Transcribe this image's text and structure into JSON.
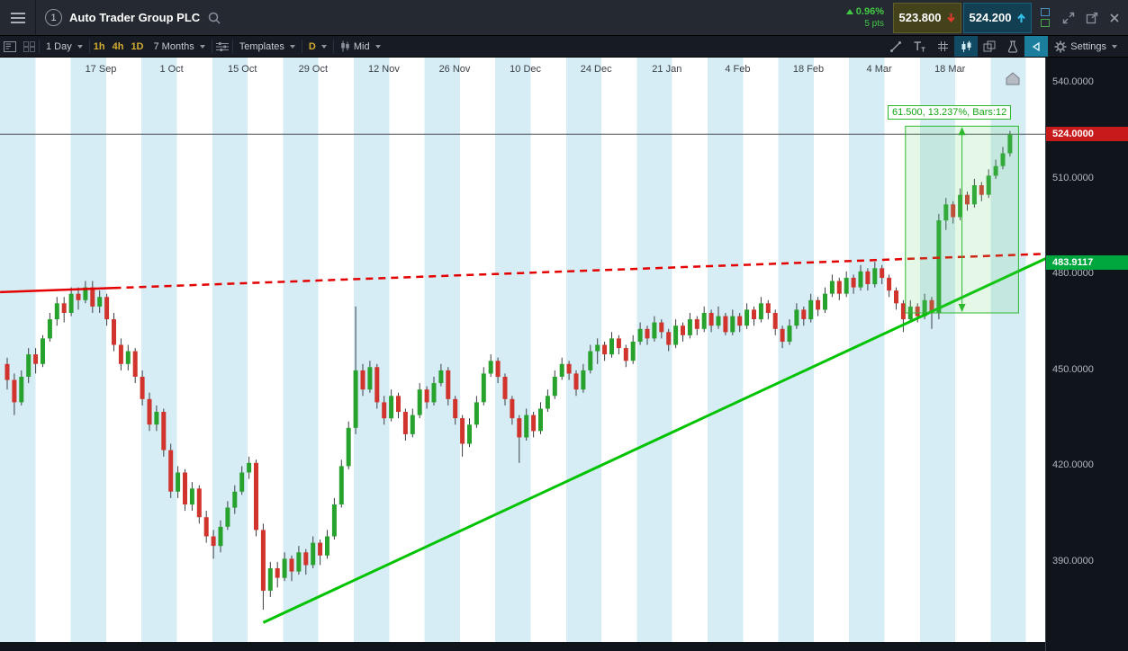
{
  "header": {
    "title": "Auto Trader Group PLC",
    "instrument_badge": "1",
    "change": {
      "pct": "0.96%",
      "pts": "5 pts",
      "direction": "up",
      "color": "#42c944"
    },
    "sell": {
      "label": "523.800"
    },
    "buy": {
      "label": "524.200"
    }
  },
  "toolbar": {
    "interval": "1 Day",
    "fav_periods": [
      "1h",
      "4h",
      "1D"
    ],
    "range": "7 Months",
    "templates_label": "Templates",
    "period_badge": "D",
    "price_type": "Mid",
    "settings_label": "Settings"
  },
  "icons": {
    "menu-icon": "hamburger-bars",
    "search-icon": "magnifier",
    "sell-arrow-icon": "red-down-arrow",
    "buy-arrow-icon": "cyan-up-arrow",
    "linked-windows-icons": "stacked-squares",
    "expand-icon": "diagonal-arrows",
    "popout-icon": "window-with-arrow",
    "close-icon": "x-cross",
    "panel-icon": "box-with-lines",
    "grid-layout-icon": "four-squares",
    "sliders-icon": "equalizer",
    "candle-small-icon": "mini-candles",
    "trendline-tool-icon": "diagonal-line",
    "text-tool-icon": "T",
    "grid-tool-icon": "hash-grid",
    "candlestick-tool-icon": "candles",
    "layers-icon": "stacked-rects",
    "flask-icon": "flask",
    "cursor-tool-icon": "left-triangle",
    "gear-icon": "gear",
    "home-icon": "house"
  },
  "chart_data": {
    "type": "candlestick",
    "title": "Auto Trader Group PLC, 1 Day",
    "x_labels": [
      "17 Sep",
      "1 Oct",
      "15 Oct",
      "29 Oct",
      "12 Nov",
      "26 Nov",
      "10 Dec",
      "24 Dec",
      "21 Jan",
      "4 Feb",
      "18 Feb",
      "4 Mar",
      "18 Mar"
    ],
    "y_axis_labels": [
      "540.0000",
      "510.0000",
      "480.0000",
      "450.0000",
      "420.0000",
      "390.0000"
    ],
    "y_axis_values": [
      540,
      510,
      480,
      450,
      420,
      390
    ],
    "ylim": [
      360,
      548
    ],
    "candles": [
      [
        452,
        454,
        444,
        447
      ],
      [
        447,
        449,
        436,
        440
      ],
      [
        440,
        450,
        439,
        448
      ],
      [
        448,
        457,
        446,
        455
      ],
      [
        455,
        457,
        449,
        452
      ],
      [
        452,
        461,
        451,
        460
      ],
      [
        460,
        468,
        459,
        466
      ],
      [
        466,
        473,
        464,
        471
      ],
      [
        471,
        473,
        465,
        468
      ],
      [
        468,
        476,
        467,
        474
      ],
      [
        474,
        476,
        469,
        472
      ],
      [
        472,
        478,
        471,
        476
      ],
      [
        476,
        478,
        468,
        470
      ],
      [
        470,
        475,
        468,
        473
      ],
      [
        473,
        474,
        464,
        466
      ],
      [
        466,
        468,
        456,
        458
      ],
      [
        458,
        460,
        450,
        452
      ],
      [
        452,
        458,
        450,
        456
      ],
      [
        456,
        457,
        446,
        448
      ],
      [
        448,
        450,
        439,
        441
      ],
      [
        441,
        443,
        431,
        433
      ],
      [
        433,
        439,
        431,
        437
      ],
      [
        437,
        438,
        423,
        425
      ],
      [
        425,
        427,
        410,
        412
      ],
      [
        412,
        420,
        410,
        418
      ],
      [
        418,
        419,
        406,
        408
      ],
      [
        408,
        415,
        406,
        413
      ],
      [
        413,
        414,
        402,
        404
      ],
      [
        404,
        406,
        396,
        398
      ],
      [
        398,
        400,
        391,
        395
      ],
      [
        395,
        403,
        393,
        401
      ],
      [
        401,
        409,
        400,
        407
      ],
      [
        407,
        414,
        405,
        412
      ],
      [
        412,
        420,
        411,
        418
      ],
      [
        418,
        423,
        416,
        421
      ],
      [
        421,
        422,
        398,
        400
      ],
      [
        400,
        402,
        375,
        381
      ],
      [
        381,
        390,
        379,
        388
      ],
      [
        388,
        390,
        382,
        385
      ],
      [
        385,
        393,
        384,
        391
      ],
      [
        391,
        392,
        384,
        387
      ],
      [
        387,
        395,
        386,
        393
      ],
      [
        393,
        394,
        386,
        389
      ],
      [
        389,
        398,
        388,
        396
      ],
      [
        396,
        397,
        389,
        392
      ],
      [
        392,
        400,
        391,
        398
      ],
      [
        398,
        410,
        397,
        408
      ],
      [
        408,
        422,
        407,
        420
      ],
      [
        420,
        434,
        419,
        432
      ],
      [
        432,
        470,
        430,
        450
      ],
      [
        450,
        452,
        442,
        444
      ],
      [
        444,
        453,
        443,
        451
      ],
      [
        451,
        452,
        438,
        440
      ],
      [
        440,
        442,
        433,
        435
      ],
      [
        435,
        444,
        434,
        442
      ],
      [
        442,
        443,
        435,
        437
      ],
      [
        437,
        438,
        428,
        430
      ],
      [
        430,
        438,
        429,
        436
      ],
      [
        436,
        446,
        435,
        444
      ],
      [
        444,
        445,
        438,
        440
      ],
      [
        440,
        448,
        439,
        446
      ],
      [
        446,
        452,
        445,
        450
      ],
      [
        450,
        451,
        439,
        441
      ],
      [
        441,
        442,
        433,
        435
      ],
      [
        435,
        436,
        423,
        427
      ],
      [
        427,
        435,
        426,
        433
      ],
      [
        433,
        442,
        432,
        440
      ],
      [
        440,
        451,
        439,
        449
      ],
      [
        449,
        455,
        448,
        453
      ],
      [
        453,
        454,
        446,
        448
      ],
      [
        448,
        449,
        439,
        441
      ],
      [
        441,
        442,
        433,
        435
      ],
      [
        435,
        436,
        421,
        429
      ],
      [
        429,
        438,
        428,
        436
      ],
      [
        436,
        437,
        429,
        431
      ],
      [
        431,
        440,
        430,
        438
      ],
      [
        438,
        444,
        437,
        442
      ],
      [
        442,
        450,
        441,
        448
      ],
      [
        448,
        454,
        447,
        452
      ],
      [
        452,
        453,
        447,
        449
      ],
      [
        449,
        450,
        442,
        444
      ],
      [
        444,
        452,
        443,
        450
      ],
      [
        450,
        458,
        449,
        456
      ],
      [
        456,
        460,
        452,
        458
      ],
      [
        458,
        459,
        453,
        455
      ],
      [
        455,
        462,
        454,
        460
      ],
      [
        460,
        461,
        455,
        457
      ],
      [
        457,
        458,
        451,
        453
      ],
      [
        453,
        461,
        452,
        459
      ],
      [
        459,
        465,
        458,
        463
      ],
      [
        463,
        464,
        458,
        460
      ],
      [
        460,
        467,
        459,
        465
      ],
      [
        465,
        466,
        460,
        462
      ],
      [
        462,
        463,
        456,
        458
      ],
      [
        458,
        466,
        457,
        464
      ],
      [
        464,
        465,
        459,
        461
      ],
      [
        461,
        468,
        460,
        466
      ],
      [
        466,
        467,
        461,
        463
      ],
      [
        463,
        470,
        462,
        468
      ],
      [
        468,
        469,
        462,
        464
      ],
      [
        464,
        470,
        463,
        467
      ],
      [
        467,
        468,
        461,
        462
      ],
      [
        462,
        469,
        461,
        467
      ],
      [
        467,
        468,
        462,
        464
      ],
      [
        464,
        471,
        463,
        469
      ],
      [
        469,
        470,
        464,
        466
      ],
      [
        466,
        473,
        465,
        471
      ],
      [
        471,
        472,
        466,
        468
      ],
      [
        468,
        469,
        461,
        463
      ],
      [
        463,
        464,
        457,
        459
      ],
      [
        459,
        466,
        458,
        464
      ],
      [
        464,
        471,
        463,
        469
      ],
      [
        469,
        470,
        464,
        466
      ],
      [
        466,
        474,
        465,
        472
      ],
      [
        472,
        473,
        467,
        469
      ],
      [
        469,
        476,
        468,
        474
      ],
      [
        474,
        480,
        473,
        478
      ],
      [
        478,
        479,
        472,
        474
      ],
      [
        474,
        481,
        473,
        479
      ],
      [
        479,
        480,
        474,
        476
      ],
      [
        476,
        483,
        475,
        481
      ],
      [
        481,
        482,
        475,
        477
      ],
      [
        477,
        484,
        476,
        482
      ],
      [
        482,
        483,
        477,
        479
      ],
      [
        479,
        480,
        473,
        475
      ],
      [
        475,
        476,
        469,
        471
      ],
      [
        471,
        472,
        462,
        466
      ],
      [
        466,
        472,
        465,
        470
      ],
      [
        470,
        471,
        465,
        467
      ],
      [
        467,
        474,
        466,
        472
      ],
      [
        472,
        473,
        463,
        468
      ],
      [
        468,
        499,
        466,
        497
      ],
      [
        497,
        504,
        494,
        502
      ],
      [
        502,
        503,
        496,
        498
      ],
      [
        498,
        507,
        497,
        505
      ],
      [
        505,
        506,
        500,
        502
      ],
      [
        502,
        510,
        501,
        508
      ],
      [
        508,
        509,
        503,
        505
      ],
      [
        505,
        513,
        504,
        511
      ],
      [
        511,
        516,
        510,
        514
      ],
      [
        514,
        520,
        513,
        518
      ],
      [
        518,
        525,
        517,
        524
      ]
    ],
    "current_price_line": {
      "value": 524.0,
      "label": "524.0000",
      "color": "#c81a1a"
    },
    "trendline_badge": {
      "value": 483.9117,
      "label": "483.9117",
      "color": "#00a63e"
    },
    "measurement_box": {
      "label": "61.500, 13.237%, Bars:12",
      "change": 61.5,
      "change_pct": 13.237,
      "bars": 12,
      "from_bar": 126.3,
      "to_bar": 142.2,
      "price_top": 526.5,
      "price_bottom": 468
    },
    "trendlines": [
      {
        "name": "support",
        "color": "#00c300",
        "width": 3,
        "style": "solid",
        "from_bar": 36,
        "from_price": 371,
        "to_bar": 146,
        "to_price": 485
      },
      {
        "name": "resistance",
        "color": "#e40000",
        "width": 2.5,
        "style": "dashed",
        "from_bar": -1,
        "from_price": 474.5,
        "to_bar": 146,
        "to_price": 486.5,
        "solid_until_bar": 15
      }
    ],
    "colors": {
      "up": "#27a22c",
      "down": "#d0342c",
      "wick": "#3a3f45",
      "background_stripe": "#d7edf6"
    }
  }
}
